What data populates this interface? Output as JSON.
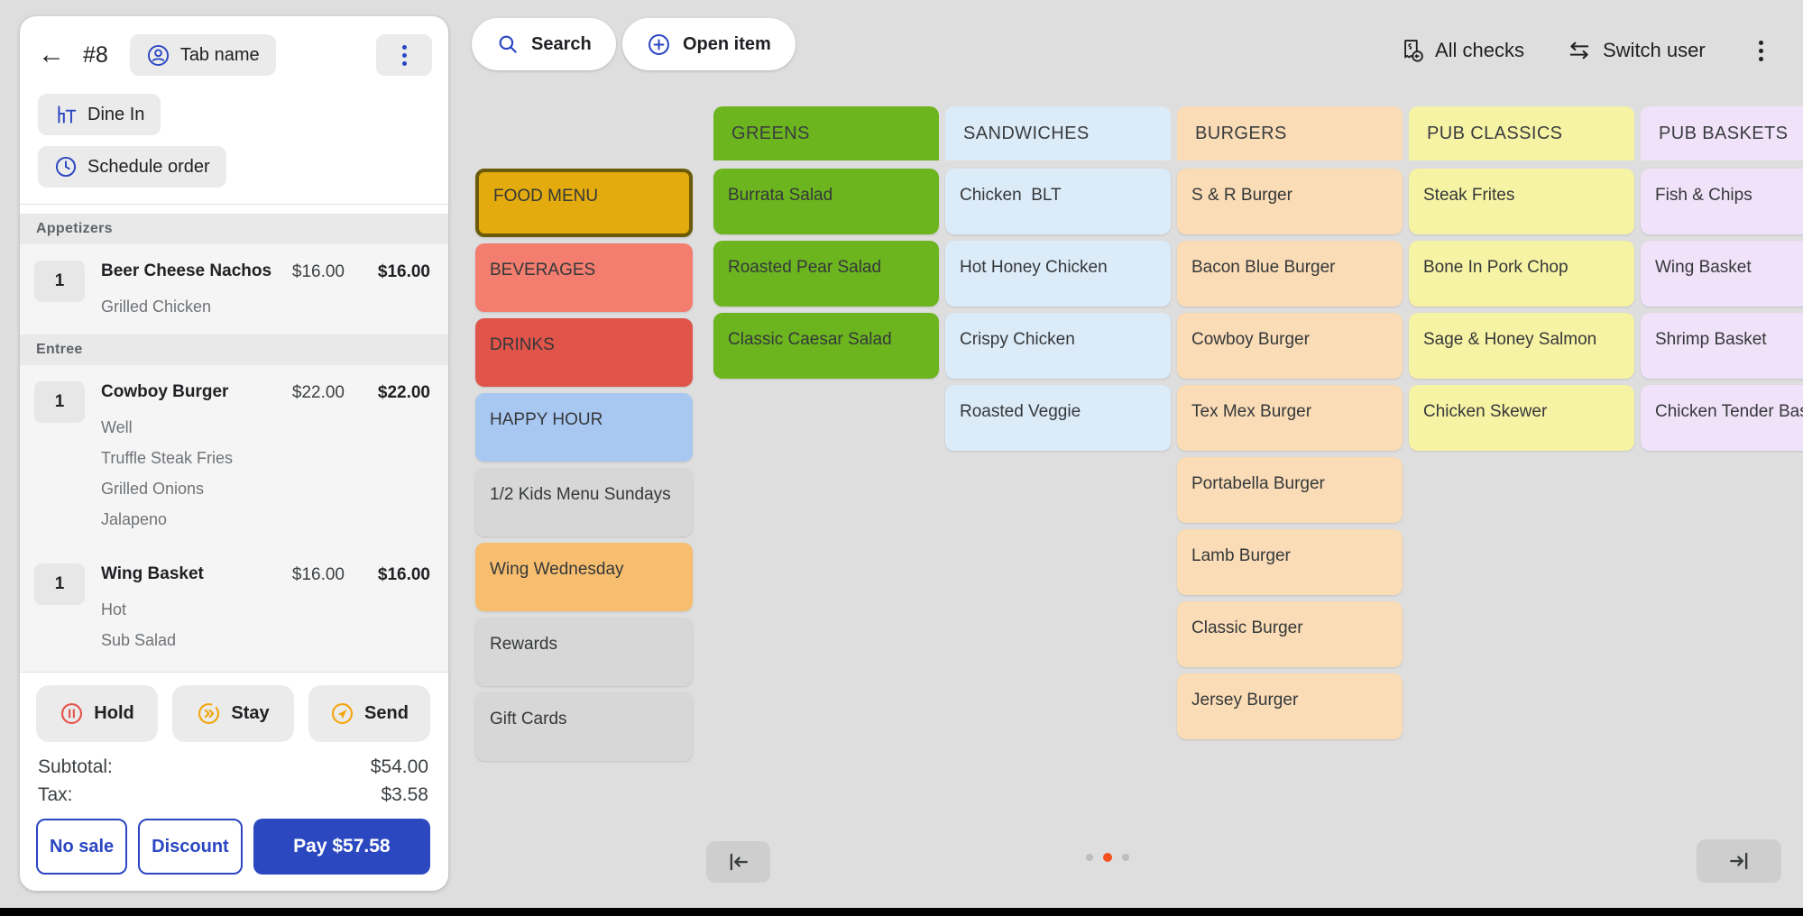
{
  "order_panel": {
    "check_number": "#8",
    "tab_name_label": "Tab name",
    "dine_in_label": "Dine In",
    "schedule_order_label": "Schedule order",
    "sections": [
      {
        "name": "Appetizers",
        "items": [
          {
            "qty": "1",
            "name": "Beer Cheese Nachos",
            "price": "$16.00",
            "total": "$16.00",
            "modifiers": [
              "Grilled Chicken"
            ]
          }
        ]
      },
      {
        "name": "Entree",
        "items": [
          {
            "qty": "1",
            "name": "Cowboy Burger",
            "price": "$22.00",
            "total": "$22.00",
            "modifiers": [
              "Well",
              "Truffle Steak Fries",
              "Grilled Onions",
              "Jalapeno"
            ]
          },
          {
            "qty": "1",
            "name": "Wing Basket",
            "price": "$16.00",
            "total": "$16.00",
            "modifiers": [
              "Hot",
              "Sub Salad"
            ]
          }
        ]
      }
    ],
    "actions": {
      "hold": "Hold",
      "stay": "Stay",
      "send": "Send"
    },
    "totals": {
      "subtotal_label": "Subtotal:",
      "subtotal_value": "$54.00",
      "tax_label": "Tax:",
      "tax_value": "$3.58"
    },
    "footer_buttons": {
      "no_sale": "No sale",
      "discount": "Discount",
      "pay": "Pay $57.58"
    }
  },
  "top_bar": {
    "search_label": "Search",
    "open_item_label": "Open item",
    "all_checks_label": "All checks",
    "switch_user_label": "Switch user"
  },
  "menu_groups": [
    {
      "label": "FOOD MENU",
      "color": "#e3ab0d",
      "selected": true
    },
    {
      "label": "BEVERAGES",
      "color": "#f37d6e",
      "selected": false
    },
    {
      "label": "DRINKS",
      "color": "#e0544a",
      "selected": false
    },
    {
      "label": "HAPPY HOUR",
      "color": "#a9c8f1",
      "selected": false
    },
    {
      "label": "1/2 Kids Menu Sundays",
      "color": "#d7d7d7",
      "selected": false
    },
    {
      "label": "Wing Wednesday",
      "color": "#f7be6f",
      "selected": false
    },
    {
      "label": "Rewards",
      "color": "#d7d7d7",
      "selected": false
    },
    {
      "label": "Gift Cards",
      "color": "#d7d7d7",
      "selected": false
    }
  ],
  "categories": [
    {
      "title": "GREENS",
      "color": "#6cb51f",
      "items": [
        "Burrata Salad",
        "Roasted Pear Salad",
        "Classic Caesar Salad"
      ]
    },
    {
      "title": "SANDWICHES",
      "color": "#dcebf8",
      "items": [
        "Chicken  BLT",
        "Hot Honey Chicken",
        "Crispy Chicken",
        "Roasted Veggie"
      ]
    },
    {
      "title": "BURGERS",
      "color": "#fadcb6",
      "items": [
        "S & R Burger",
        "Bacon Blue Burger",
        "Cowboy Burger",
        "Tex Mex Burger",
        "Portabella Burger",
        "Lamb Burger",
        "Classic Burger",
        "Jersey Burger"
      ]
    },
    {
      "title": "PUB CLASSICS",
      "color": "#f7f3a4",
      "items": [
        "Steak Frites",
        "Bone In Pork Chop",
        "Sage & Honey Salmon",
        "Chicken Skewer"
      ]
    },
    {
      "title": "PUB BASKETS",
      "color": "#f0e2f8",
      "items": [
        "Fish & Chips",
        "Wing Basket",
        "Shrimp Basket",
        "Chicken Tender Basket"
      ]
    }
  ],
  "pagination": {
    "dot_count": 3,
    "active_index": 1
  },
  "colors": {
    "accent_blue": "#2a46c2",
    "pay_blue": "#2b48c0",
    "selected_tile_border": "#6b5a08",
    "hold_red": "#e5534b",
    "stay_amber": "#f2a60d",
    "active_dot": "#f4511e",
    "background": "#dedede"
  },
  "icons": {
    "back": "left-arrow",
    "tab_name": "person-circle",
    "dine_in": "table-and-chair",
    "schedule": "clock",
    "hold": "pause-circle",
    "stay": "double-chevron-circle",
    "send": "paper-plane-circle",
    "search": "magnifier",
    "open_item": "plus-circle",
    "all_checks": "receipt-dollar",
    "switch_user": "swap-arrows",
    "nav_start": "arrow-to-start",
    "nav_end": "arrow-to-end"
  }
}
